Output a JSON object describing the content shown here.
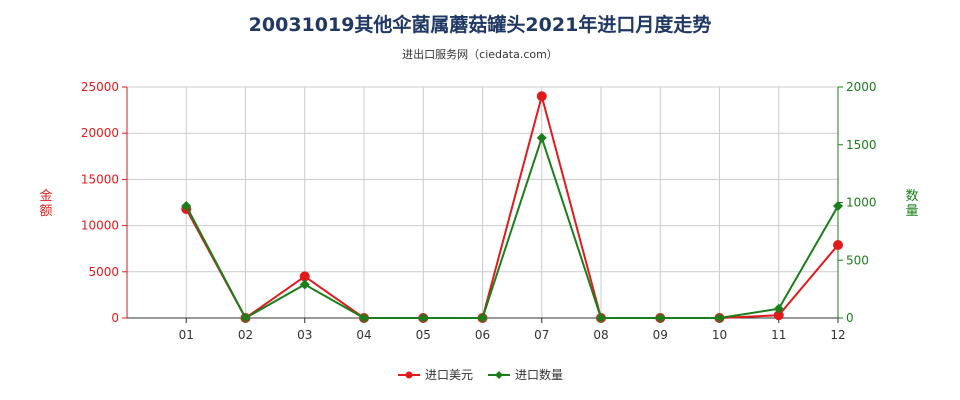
{
  "page": {
    "title": "20031019其他伞菌属蘑菇罐头2021年进口月度走势",
    "subtitle": "进出口服务网（ciedata.com）"
  },
  "colors": {
    "left_axis": "#e31a1c",
    "right_axis": "#1a7f1a",
    "series_amount": "#e31a1c",
    "series_quantity": "#1a7f1a",
    "grid": "#cccccc"
  },
  "chart_data": {
    "type": "line",
    "title": "20031019其他伞菌属蘑菇罐头2021年进口月度走势",
    "categories": [
      "01",
      "02",
      "03",
      "04",
      "05",
      "06",
      "07",
      "08",
      "09",
      "10",
      "11",
      "12"
    ],
    "y_left": {
      "label": "金额",
      "range": [
        0,
        25000
      ],
      "ticks": [
        0,
        5000,
        10000,
        15000,
        20000,
        25000
      ]
    },
    "y_right": {
      "label": "数量",
      "range": [
        0,
        2000
      ],
      "ticks": [
        0,
        500,
        1000,
        1500,
        2000
      ]
    },
    "grid": true,
    "legend_position": "bottom-center",
    "series": [
      {
        "name": "进口美元",
        "axis": "left",
        "marker": "circle",
        "values": [
          11800,
          0,
          4500,
          0,
          0,
          0,
          24000,
          0,
          0,
          0,
          300,
          7900
        ]
      },
      {
        "name": "进口数量",
        "axis": "right",
        "marker": "diamond",
        "values": [
          970,
          0,
          290,
          0,
          0,
          0,
          1560,
          0,
          0,
          0,
          80,
          970
        ]
      }
    ]
  }
}
